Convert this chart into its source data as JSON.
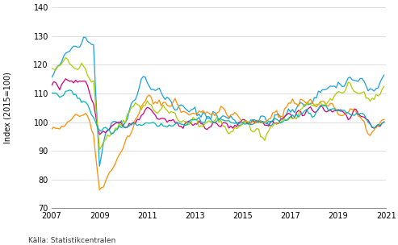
{
  "title": "",
  "ylabel": "Index (2015=100)",
  "xlim": [
    2007.0,
    2021.0
  ],
  "ylim": [
    70,
    140
  ],
  "yticks": [
    70,
    80,
    90,
    100,
    110,
    120,
    130,
    140
  ],
  "xticks": [
    2007,
    2009,
    2011,
    2013,
    2015,
    2017,
    2019,
    2021
  ],
  "background_color": "#ffffff",
  "grid_color": "#d0d0d0",
  "source_text": "Källa: Statistikcentralen",
  "colors": {
    "Finland": "#1a9fdb",
    "Sverige": "#aacc00",
    "Frankrike": "#cc007a",
    "Storbritannien": "#00b5b5",
    "Tyskland": "#ff8c00"
  },
  "finland_wp": [
    [
      2007.0,
      115
    ],
    [
      2007.4,
      120
    ],
    [
      2007.75,
      125
    ],
    [
      2008.0,
      128
    ],
    [
      2008.4,
      131
    ],
    [
      2008.75,
      126
    ],
    [
      2009.0,
      86
    ],
    [
      2009.25,
      97
    ],
    [
      2009.5,
      99
    ],
    [
      2010.0,
      101
    ],
    [
      2010.5,
      108
    ],
    [
      2010.75,
      117
    ],
    [
      2011.0,
      114
    ],
    [
      2011.5,
      110
    ],
    [
      2012.0,
      107
    ],
    [
      2012.5,
      104
    ],
    [
      2013.0,
      103
    ],
    [
      2013.5,
      103
    ],
    [
      2014.0,
      102
    ],
    [
      2014.5,
      101
    ],
    [
      2015.0,
      100
    ],
    [
      2015.5,
      101
    ],
    [
      2016.0,
      100
    ],
    [
      2016.5,
      101
    ],
    [
      2017.0,
      103
    ],
    [
      2017.5,
      106
    ],
    [
      2018.0,
      109
    ],
    [
      2018.5,
      112
    ],
    [
      2019.0,
      113
    ],
    [
      2019.5,
      115
    ],
    [
      2020.0,
      114
    ],
    [
      2020.5,
      110
    ],
    [
      2020.83,
      113
    ]
  ],
  "sverige_wp": [
    [
      2007.0,
      119
    ],
    [
      2007.5,
      120
    ],
    [
      2008.0,
      120
    ],
    [
      2008.5,
      118
    ],
    [
      2008.75,
      113
    ],
    [
      2009.0,
      90
    ],
    [
      2009.3,
      94
    ],
    [
      2009.5,
      96
    ],
    [
      2010.0,
      100
    ],
    [
      2010.5,
      104
    ],
    [
      2011.0,
      107
    ],
    [
      2011.5,
      105
    ],
    [
      2012.0,
      103
    ],
    [
      2012.5,
      101
    ],
    [
      2013.0,
      100
    ],
    [
      2013.5,
      99
    ],
    [
      2014.0,
      100
    ],
    [
      2014.5,
      97
    ],
    [
      2015.0,
      100
    ],
    [
      2015.5,
      97
    ],
    [
      2016.0,
      98
    ],
    [
      2016.5,
      100
    ],
    [
      2017.0,
      102
    ],
    [
      2017.5,
      104
    ],
    [
      2018.0,
      106
    ],
    [
      2018.5,
      108
    ],
    [
      2019.0,
      109
    ],
    [
      2019.5,
      112
    ],
    [
      2020.0,
      110
    ],
    [
      2020.5,
      107
    ],
    [
      2020.83,
      111
    ]
  ],
  "frankrike_wp": [
    [
      2007.0,
      113
    ],
    [
      2007.5,
      114
    ],
    [
      2008.0,
      115
    ],
    [
      2008.5,
      113
    ],
    [
      2008.75,
      107
    ],
    [
      2009.0,
      96
    ],
    [
      2009.3,
      97
    ],
    [
      2009.5,
      98
    ],
    [
      2010.0,
      100
    ],
    [
      2010.5,
      101
    ],
    [
      2011.0,
      103
    ],
    [
      2011.5,
      101
    ],
    [
      2012.0,
      100
    ],
    [
      2012.5,
      99
    ],
    [
      2013.0,
      100
    ],
    [
      2013.5,
      99
    ],
    [
      2014.0,
      100
    ],
    [
      2014.5,
      99
    ],
    [
      2015.0,
      100
    ],
    [
      2015.5,
      100
    ],
    [
      2016.0,
      100
    ],
    [
      2016.5,
      101
    ],
    [
      2017.0,
      102
    ],
    [
      2017.5,
      103
    ],
    [
      2018.0,
      104
    ],
    [
      2018.5,
      104
    ],
    [
      2019.0,
      104
    ],
    [
      2019.5,
      103
    ],
    [
      2020.0,
      103
    ],
    [
      2020.5,
      98
    ],
    [
      2020.83,
      101
    ]
  ],
  "storbritannien_wp": [
    [
      2007.0,
      110
    ],
    [
      2007.5,
      111
    ],
    [
      2008.0,
      110
    ],
    [
      2008.5,
      107
    ],
    [
      2008.75,
      103
    ],
    [
      2009.0,
      97
    ],
    [
      2009.3,
      97
    ],
    [
      2009.5,
      97
    ],
    [
      2010.0,
      98
    ],
    [
      2010.5,
      100
    ],
    [
      2011.0,
      100
    ],
    [
      2011.5,
      99
    ],
    [
      2012.0,
      99
    ],
    [
      2012.5,
      99
    ],
    [
      2013.0,
      100
    ],
    [
      2013.5,
      100
    ],
    [
      2014.0,
      101
    ],
    [
      2014.5,
      101
    ],
    [
      2015.0,
      100
    ],
    [
      2015.5,
      100
    ],
    [
      2016.0,
      100
    ],
    [
      2016.5,
      101
    ],
    [
      2017.0,
      102
    ],
    [
      2017.5,
      103
    ],
    [
      2018.0,
      104
    ],
    [
      2018.5,
      104
    ],
    [
      2019.0,
      104
    ],
    [
      2019.5,
      103
    ],
    [
      2020.0,
      102
    ],
    [
      2020.5,
      97
    ],
    [
      2020.83,
      99
    ]
  ],
  "tyskland_wp": [
    [
      2007.0,
      96
    ],
    [
      2007.5,
      99
    ],
    [
      2008.0,
      102
    ],
    [
      2008.5,
      102
    ],
    [
      2008.75,
      97
    ],
    [
      2009.0,
      78
    ],
    [
      2009.25,
      79
    ],
    [
      2009.5,
      83
    ],
    [
      2010.0,
      93
    ],
    [
      2010.5,
      101
    ],
    [
      2011.0,
      108
    ],
    [
      2011.5,
      107
    ],
    [
      2012.0,
      106
    ],
    [
      2012.5,
      104
    ],
    [
      2013.0,
      103
    ],
    [
      2013.5,
      103
    ],
    [
      2014.0,
      105
    ],
    [
      2014.5,
      103
    ],
    [
      2015.0,
      100
    ],
    [
      2015.5,
      101
    ],
    [
      2016.0,
      101
    ],
    [
      2016.5,
      103
    ],
    [
      2017.0,
      105
    ],
    [
      2017.5,
      107
    ],
    [
      2018.0,
      107
    ],
    [
      2018.5,
      106
    ],
    [
      2019.0,
      104
    ],
    [
      2019.5,
      102
    ],
    [
      2020.0,
      101
    ],
    [
      2020.5,
      95
    ],
    [
      2020.83,
      100
    ]
  ]
}
